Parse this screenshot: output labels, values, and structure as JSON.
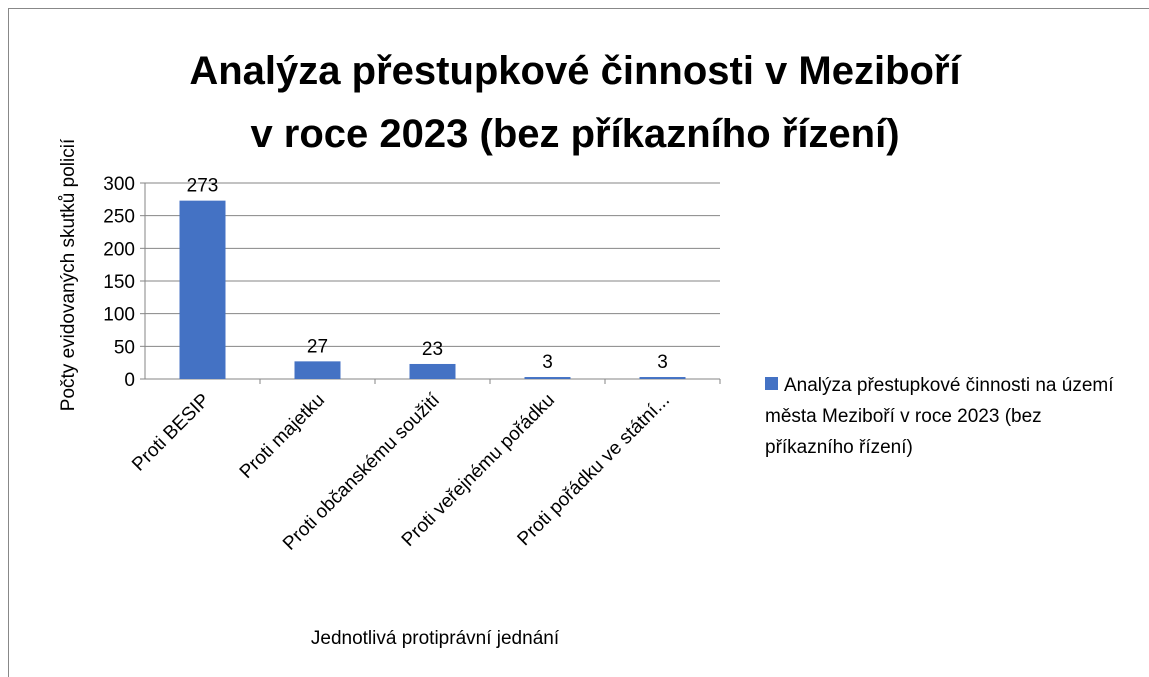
{
  "chart_data": {
    "type": "bar",
    "title": [
      "Analýza přestupkové činnosti v Meziboří",
      "v roce 2023 (bez příkazního řízení)"
    ],
    "x_label": "Jednotlivá protiprávní jednání",
    "y_label": "Počty evidovaných skutků policií",
    "categories": [
      "Proti BESIP",
      "Proti majetku",
      "Proti občanskému soužití",
      "Proti veřejnému pořádku",
      "Proti pořádku ve státní..."
    ],
    "series": [
      {
        "name": "Analýza přestupkové činnosti na území města Meziboří v roce 2023 (bez příkazního řízení)",
        "color": "#4472c4",
        "values": [
          273,
          27,
          23,
          3,
          3
        ]
      }
    ],
    "ylim": [
      0,
      300
    ],
    "yticks": [
      0,
      50,
      100,
      150,
      200,
      250,
      300
    ],
    "grid": true,
    "data_labels": true,
    "legend": "right"
  }
}
